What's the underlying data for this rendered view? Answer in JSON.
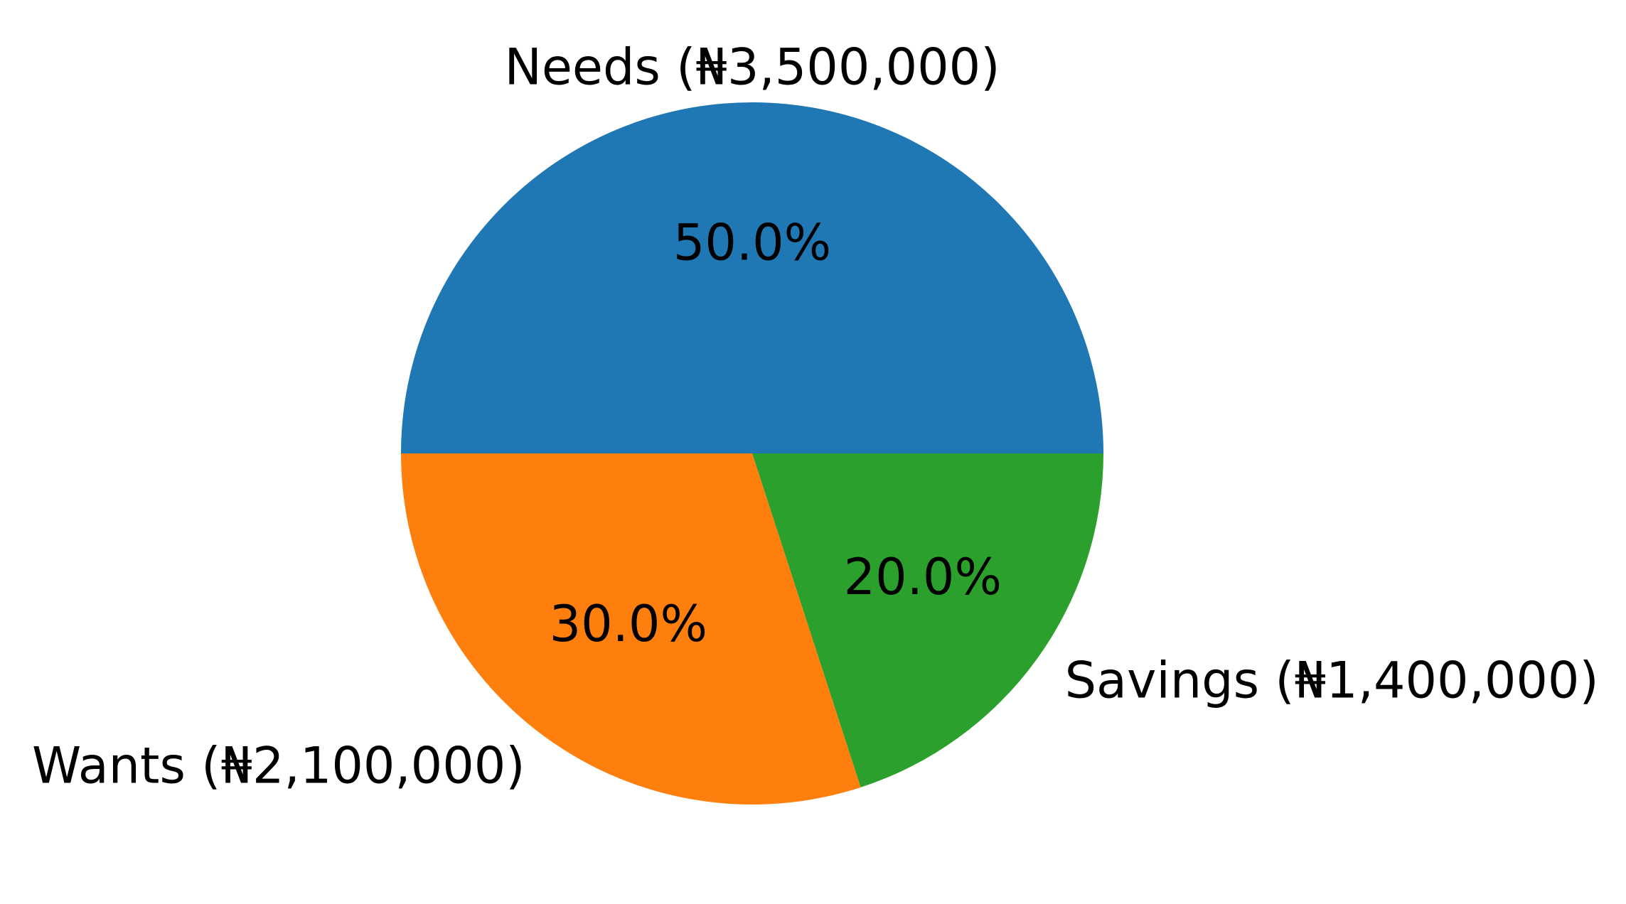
{
  "chart_data": {
    "type": "pie",
    "categories": [
      "Needs (₦3,500,000)",
      "Wants (₦2,100,000)",
      "Savings (₦1,400,000)"
    ],
    "values": [
      3500000,
      2100000,
      1400000
    ],
    "percent_labels": [
      "50.0%",
      "30.0%",
      "20.0%"
    ],
    "colors": [
      "#1f77b4",
      "#ff7f0e",
      "#2ca02c"
    ],
    "start_angle_deg": 0,
    "direction": "counterclockwise"
  }
}
